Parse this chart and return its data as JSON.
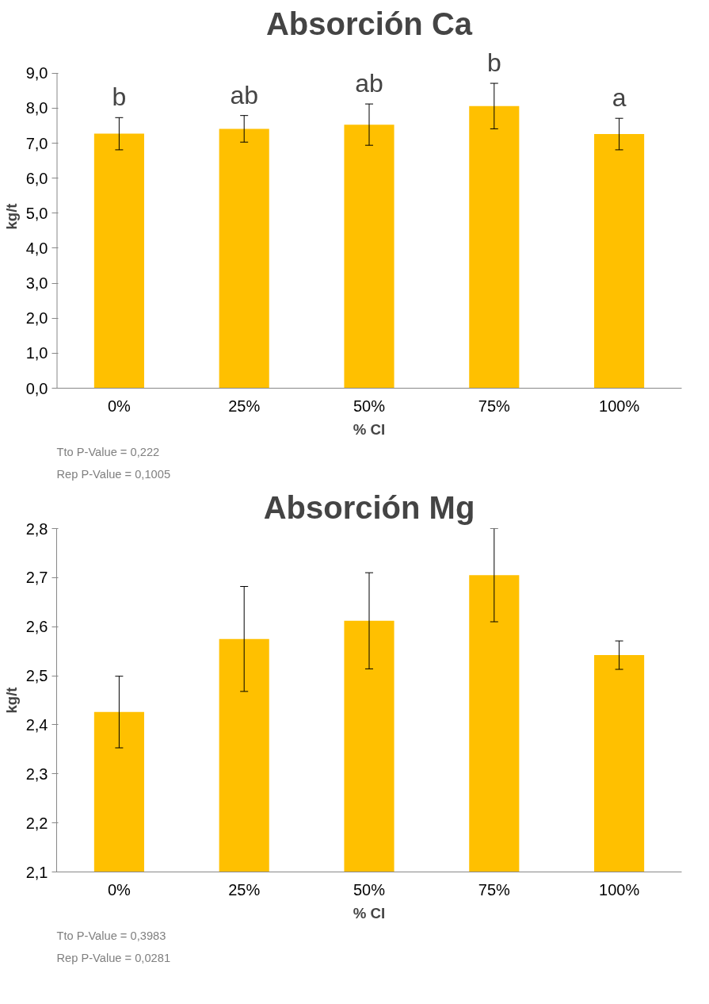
{
  "chart_data": [
    {
      "type": "bar",
      "title": "Absorción Ca",
      "xlabel": "% CI",
      "ylabel": "kg/t",
      "categories": [
        "0%",
        "25%",
        "50%",
        "75%",
        "100%"
      ],
      "values": [
        7.27,
        7.41,
        7.53,
        8.06,
        7.26
      ],
      "errors": [
        0.46,
        0.38,
        0.59,
        0.65,
        0.45
      ],
      "color": "#ffc000",
      "ylim": [
        0,
        9
      ],
      "yticks": [
        {
          "value": 0,
          "label": "0,0"
        },
        {
          "value": 1,
          "label": "1,0"
        },
        {
          "value": 2,
          "label": "2,0"
        },
        {
          "value": 3,
          "label": "3,0"
        },
        {
          "value": 4,
          "label": "4,0"
        },
        {
          "value": 5,
          "label": "5,0"
        },
        {
          "value": 6,
          "label": "6,0"
        },
        {
          "value": 7,
          "label": "7,0"
        },
        {
          "value": 8,
          "label": "8,0"
        },
        {
          "value": 9,
          "label": "9,0"
        }
      ],
      "grid": false,
      "annotations": [
        {
          "text": "b",
          "x": "0%",
          "y": 7.73
        },
        {
          "text": "ab",
          "x": "25%",
          "y": 7.79
        },
        {
          "text": "ab",
          "x": "50%",
          "y": 8.12
        },
        {
          "text": "b",
          "x": "75%",
          "y": 8.71
        },
        {
          "text": "a",
          "x": "100%",
          "y": 7.71
        },
        "Tto    P-Value = 0,222",
        "Rep   P-Value = 0,1005"
      ]
    },
    {
      "type": "bar",
      "title": "Absorción Mg",
      "xlabel": "% CI",
      "ylabel": "kg/t",
      "categories": [
        "0%",
        "25%",
        "50%",
        "75%",
        "100%"
      ],
      "values": [
        2.426,
        2.575,
        2.612,
        2.705,
        2.542
      ],
      "errors": [
        0.073,
        0.107,
        0.098,
        0.095,
        0.029
      ],
      "color": "#ffc000",
      "ylim": [
        2.1,
        2.8
      ],
      "yticks": [
        {
          "value": 2.1,
          "label": "2,1"
        },
        {
          "value": 2.2,
          "label": "2,2"
        },
        {
          "value": 2.3,
          "label": "2,3"
        },
        {
          "value": 2.4,
          "label": "2,4"
        },
        {
          "value": 2.5,
          "label": "2,5"
        },
        {
          "value": 2.6,
          "label": "2,6"
        },
        {
          "value": 2.7,
          "label": "2,7"
        },
        {
          "value": 2.8,
          "label": "2,8"
        }
      ],
      "grid": false,
      "annotations": [
        "Tto    P-Value = 0,3983",
        "Rep   P-Value = 0,0281"
      ]
    }
  ]
}
